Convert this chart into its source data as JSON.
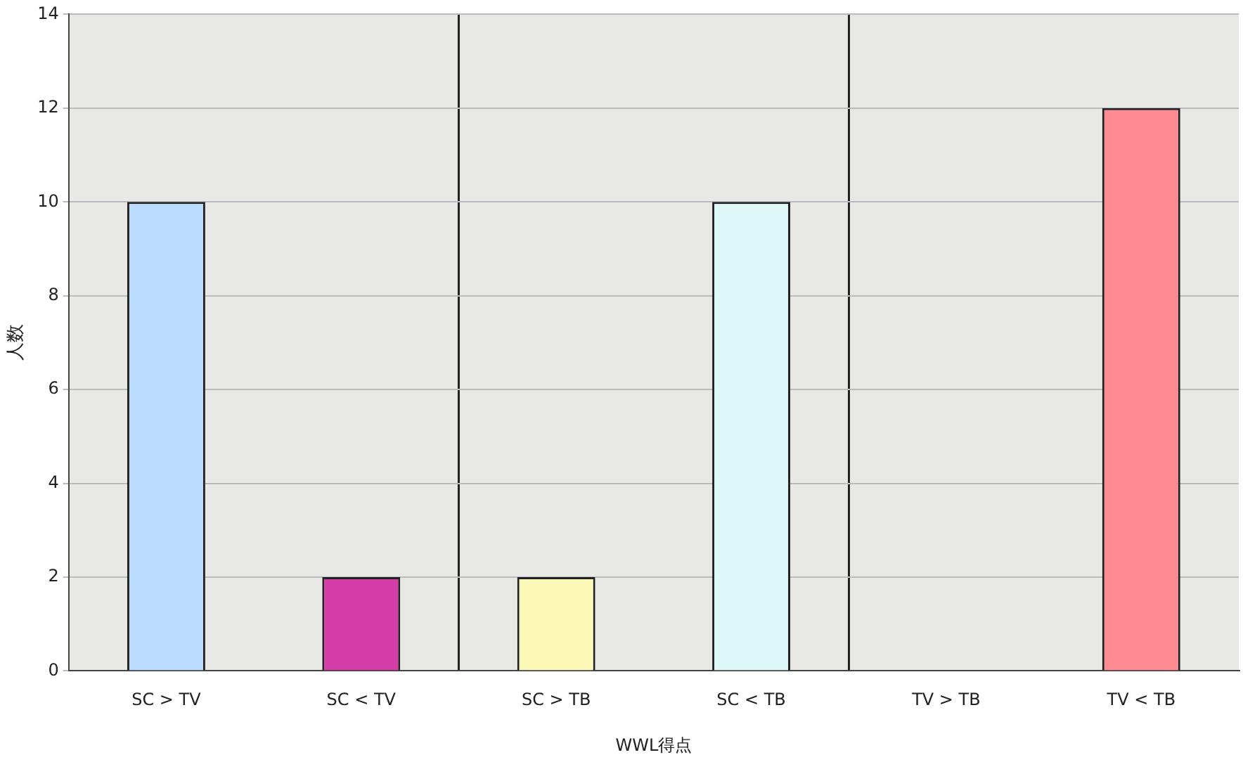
{
  "chart_data": {
    "type": "bar",
    "xlabel": "WWL得点",
    "ylabel": "人数",
    "categories": [
      "SC > TV",
      "SC < TV",
      "SC > TB",
      "SC < TB",
      "TV > TB",
      "TV < TB"
    ],
    "values": [
      10,
      2,
      2,
      10,
      0,
      12
    ],
    "colors": [
      "#bcdcff",
      "#d43ca8",
      "#fbf8b8",
      "#def8f8",
      "#f08890",
      "#ff8a92"
    ],
    "ylim": [
      0,
      14
    ],
    "yticks": [
      0,
      2,
      4,
      6,
      8,
      10,
      12,
      14
    ],
    "grid": "y",
    "legend": false
  }
}
